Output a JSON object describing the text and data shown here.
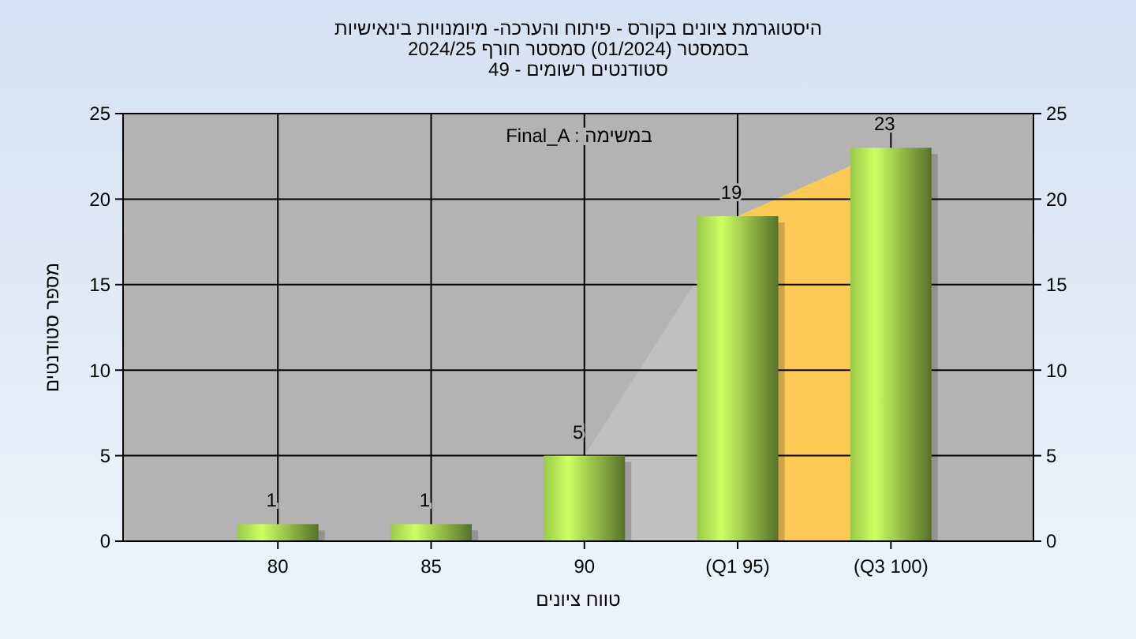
{
  "chart_data": {
    "type": "bar",
    "title": "היסטוגרמת ציונים בקורס - פיתוח והערכה- מיומנויות בינאישיות",
    "subtitle": "בסמסטר  (01/2024)  סמסטר חורף 2024/25\nסטודנטים רשומים - 49",
    "xlabel": "טווח ציונים",
    "ylabel": "מספר סטודנטים",
    "annotations": [
      "Final_A : במשימה"
    ],
    "categories": [
      "80",
      "85",
      "90",
      "(Q1 95)",
      "(Q3 100)"
    ],
    "series": [
      {
        "type": "area",
        "color": "#c0c0c0",
        "x": [
          "90",
          "(Q1 95)"
        ],
        "values": [
          5,
          19
        ]
      },
      {
        "type": "area",
        "color": "#fdc955",
        "x": [
          "(Q1 95)",
          "(Q3 100)"
        ],
        "values": [
          19,
          23
        ]
      },
      {
        "color": "#9ac84a",
        "values": [
          1,
          1,
          5,
          19,
          23
        ],
        "value_labels": [
          "1",
          "1",
          "5",
          "19",
          "23"
        ]
      }
    ],
    "ylim": [
      0,
      25
    ],
    "yticks": [
      0,
      5,
      10,
      15,
      20,
      25
    ],
    "y2lim": [
      0,
      25
    ],
    "y2ticks": [
      0,
      5,
      10,
      15,
      20,
      25
    ],
    "grid": true
  }
}
